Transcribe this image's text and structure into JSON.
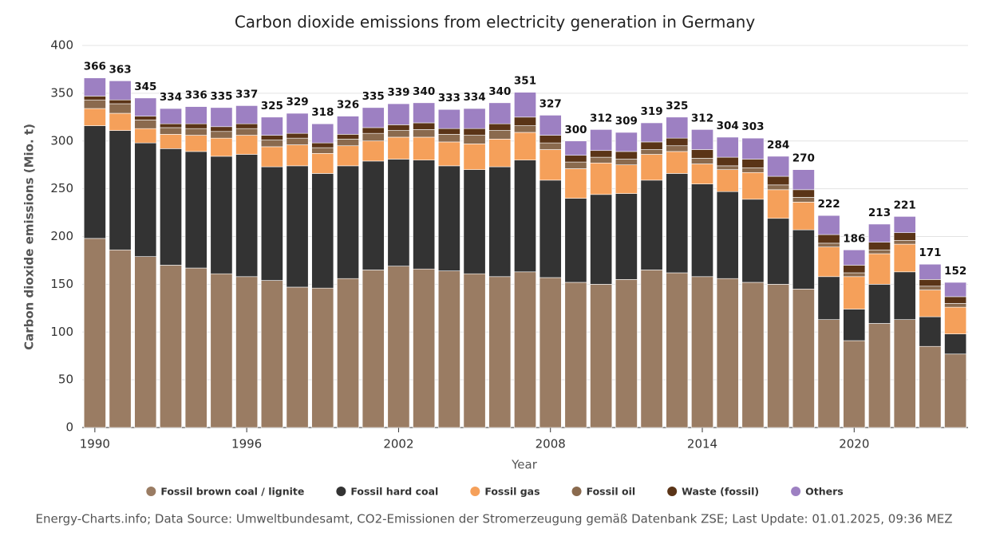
{
  "chart_data": {
    "type": "stacked-bar",
    "title": "Carbon dioxide emissions from electricity generation in Germany",
    "xlabel": "Year",
    "ylabel": "Carbon dioxide emissions (Mio. t)",
    "source": "Energy-Charts.info; Data Source: Umweltbundesamt, CO2-Emissionen der Stromerzeugung gemäß Datenbank ZSE; Last Update: 01.01.2025, 09:36 MEZ",
    "x": [
      1990,
      1991,
      1992,
      1993,
      1994,
      1995,
      1996,
      1997,
      1998,
      1999,
      2000,
      2001,
      2002,
      2003,
      2004,
      2005,
      2006,
      2007,
      2008,
      2009,
      2010,
      2011,
      2012,
      2013,
      2014,
      2015,
      2016,
      2017,
      2018,
      2019,
      2020,
      2021,
      2022,
      2023,
      2024
    ],
    "xlim": [
      1989.5,
      2024.5
    ],
    "xticks": [
      1990,
      1996,
      2002,
      2008,
      2014,
      2020
    ],
    "ylim": [
      0,
      400
    ],
    "yticks": [
      0,
      50,
      100,
      150,
      200,
      250,
      300,
      350,
      400
    ],
    "grid": true,
    "series": [
      {
        "name": "Fossil brown coal / lignite",
        "color": "#9a7c63",
        "values": [
          198,
          186,
          179,
          170,
          167,
          161,
          158,
          154,
          147,
          146,
          156,
          165,
          169,
          166,
          164,
          161,
          158,
          163,
          157,
          152,
          150,
          155,
          165,
          162,
          158,
          156,
          152,
          150,
          145,
          113,
          91,
          109,
          113,
          85,
          77
        ]
      },
      {
        "name": "Fossil hard coal",
        "color": "#333333",
        "values": [
          118,
          125,
          119,
          122,
          122,
          123,
          128,
          119,
          127,
          120,
          118,
          114,
          112,
          114,
          110,
          109,
          115,
          117,
          102,
          88,
          94,
          90,
          94,
          104,
          97,
          91,
          87,
          69,
          62,
          45,
          33,
          41,
          50,
          31,
          21
        ]
      },
      {
        "name": "Fossil gas",
        "color": "#f5a05a",
        "values": [
          18,
          18,
          15,
          15,
          17,
          19,
          20,
          21,
          22,
          21,
          21,
          21,
          23,
          24,
          25,
          27,
          29,
          29,
          32,
          31,
          33,
          30,
          27,
          23,
          21,
          23,
          28,
          30,
          29,
          31,
          34,
          32,
          29,
          28,
          28
        ]
      },
      {
        "name": "Fossil oil",
        "color": "#8a6a4e",
        "values": [
          9,
          10,
          9,
          7,
          7,
          7,
          7,
          7,
          7,
          6,
          7,
          8,
          7,
          8,
          8,
          9,
          9,
          7,
          7,
          7,
          6,
          6,
          5,
          6,
          6,
          4,
          5,
          5,
          5,
          4,
          4,
          4,
          4,
          4,
          4
        ]
      },
      {
        "name": "Waste (fossil)",
        "color": "#5a3417",
        "values": [
          4,
          4,
          4,
          4,
          5,
          5,
          5,
          5,
          5,
          5,
          5,
          6,
          6,
          7,
          6,
          7,
          7,
          9,
          8,
          7,
          7,
          8,
          8,
          8,
          9,
          9,
          9,
          9,
          8,
          9,
          8,
          8,
          8,
          7,
          7
        ]
      },
      {
        "name": "Others",
        "color": "#9d80c2",
        "values": [
          19,
          20,
          19,
          16,
          18,
          20,
          19,
          19,
          21,
          20,
          19,
          21,
          22,
          21,
          20,
          21,
          22,
          26,
          21,
          15,
          22,
          20,
          20,
          22,
          21,
          21,
          22,
          21,
          21,
          20,
          16,
          19,
          17,
          16,
          15
        ]
      }
    ],
    "totals": [
      366,
      363,
      345,
      334,
      336,
      335,
      337,
      325,
      329,
      318,
      326,
      335,
      339,
      340,
      333,
      334,
      340,
      351,
      327,
      300,
      312,
      309,
      319,
      325,
      312,
      304,
      303,
      284,
      270,
      222,
      186,
      213,
      221,
      171,
      152
    ]
  }
}
